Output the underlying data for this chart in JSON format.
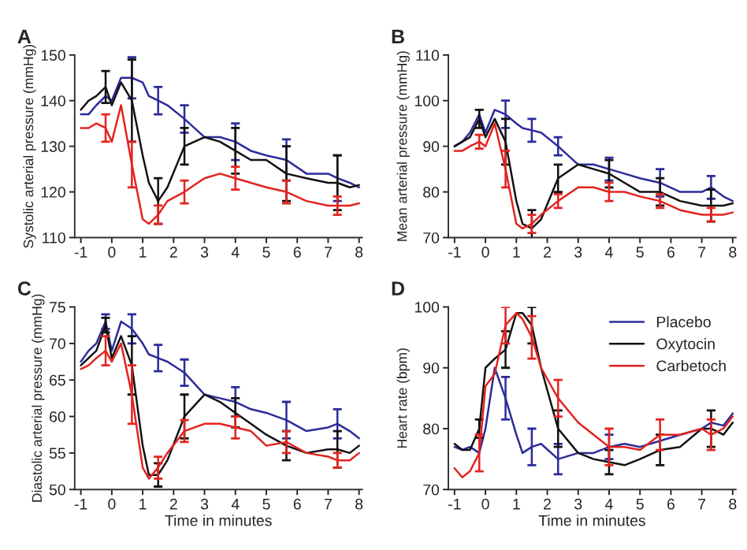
{
  "chart_data": [
    {
      "type": "line",
      "title": "A",
      "ylabel": "Systolic arterial pressure (mmHg)",
      "x": [
        -1,
        -0.75,
        -0.5,
        -0.2,
        0,
        0.3,
        0.65,
        1,
        1.2,
        1.5,
        1.8,
        2.35,
        3,
        3.5,
        4,
        4.5,
        5,
        5.65,
        6.3,
        7,
        7.3,
        7.7,
        8
      ],
      "xlim": [
        -1.2,
        8.1
      ],
      "xticks": [
        -1,
        0,
        1,
        2,
        3,
        4,
        5,
        6,
        7,
        8
      ],
      "ylim": [
        110,
        150
      ],
      "yticks": [
        110,
        120,
        130,
        140,
        150
      ],
      "legend": false,
      "series": [
        {
          "color": "#2b2b9a",
          "values": [
            137,
            137,
            139,
            141,
            140,
            145,
            145,
            144,
            141,
            140,
            139,
            136,
            132,
            132,
            131,
            129,
            128,
            127,
            124,
            124,
            123,
            122,
            121
          ],
          "errors": [
            null,
            null,
            null,
            null,
            null,
            null,
            4.5,
            null,
            null,
            3,
            null,
            3,
            null,
            null,
            4,
            null,
            null,
            4.5,
            null,
            null,
            5,
            null,
            null
          ]
        },
        {
          "color": "#111111",
          "values": [
            138,
            140,
            141,
            143,
            139,
            144,
            140,
            128,
            122,
            118,
            121,
            130,
            132,
            131,
            129,
            127,
            127,
            124,
            123,
            122,
            122,
            121,
            121.5
          ],
          "errors": [
            null,
            null,
            null,
            3.5,
            null,
            null,
            9,
            null,
            null,
            5,
            null,
            4,
            null,
            null,
            5,
            null,
            null,
            6,
            null,
            null,
            6,
            null,
            null
          ]
        },
        {
          "color": "#e3231f",
          "values": [
            134,
            134,
            135,
            134,
            131,
            139,
            126,
            114,
            113,
            115,
            118,
            120,
            123,
            124,
            123,
            122,
            121,
            120,
            118,
            117,
            117,
            117,
            117.5
          ],
          "errors": [
            null,
            null,
            null,
            3,
            null,
            null,
            5,
            null,
            null,
            2,
            null,
            2.5,
            null,
            null,
            2.5,
            null,
            null,
            2.5,
            null,
            null,
            2,
            null,
            null
          ]
        }
      ]
    },
    {
      "type": "line",
      "title": "B",
      "ylabel": "Mean arterial pressure (mmHg)",
      "x": [
        -1,
        -0.75,
        -0.5,
        -0.2,
        0,
        0.3,
        0.65,
        1,
        1.2,
        1.5,
        1.8,
        2.35,
        3,
        3.5,
        4,
        4.5,
        5,
        5.65,
        6.3,
        7,
        7.3,
        7.7,
        8
      ],
      "xlim": [
        -1.2,
        8.1
      ],
      "xticks": [
        -1,
        0,
        1,
        2,
        3,
        4,
        5,
        6,
        7,
        8
      ],
      "ylim": [
        70,
        110
      ],
      "yticks": [
        70,
        80,
        90,
        100,
        110
      ],
      "legend": false,
      "series": [
        {
          "color": "#2b2b9a",
          "values": [
            90,
            91,
            93,
            97,
            93,
            98,
            97,
            95,
            94,
            93.5,
            93,
            90,
            86,
            86,
            85,
            84,
            83,
            82,
            80,
            80,
            81,
            79,
            78
          ],
          "errors": [
            null,
            null,
            null,
            null,
            null,
            null,
            3,
            null,
            null,
            2.5,
            null,
            2,
            null,
            null,
            2.5,
            null,
            null,
            3,
            null,
            null,
            2.5,
            null,
            null
          ]
        },
        {
          "color": "#111111",
          "values": [
            90,
            91,
            92,
            96,
            92,
            96,
            91,
            78,
            73,
            72,
            74,
            83,
            86,
            85,
            84,
            82,
            80,
            80,
            78,
            77,
            77,
            77,
            77.5
          ],
          "errors": [
            null,
            null,
            null,
            2,
            null,
            null,
            5,
            null,
            null,
            4,
            null,
            3,
            null,
            null,
            3,
            null,
            null,
            3,
            null,
            null,
            3.5,
            null,
            null
          ]
        },
        {
          "color": "#e3231f",
          "values": [
            89,
            89,
            90,
            91,
            90,
            95,
            85,
            73,
            72,
            73,
            75,
            78,
            81,
            81,
            80,
            80,
            79,
            78,
            76,
            75,
            75,
            75,
            75.5
          ],
          "errors": [
            null,
            null,
            null,
            1.5,
            null,
            null,
            4,
            null,
            null,
            2,
            null,
            1.5,
            null,
            null,
            2,
            null,
            null,
            1.5,
            null,
            null,
            1.5,
            null,
            null
          ]
        }
      ]
    },
    {
      "type": "line",
      "title": "C",
      "ylabel": "Diastolic arterial pressure (mmHg)",
      "xlabel": "Time in minutes",
      "x": [
        -1,
        -0.75,
        -0.5,
        -0.2,
        0,
        0.3,
        0.65,
        1,
        1.2,
        1.5,
        1.8,
        2.35,
        3,
        3.5,
        4,
        4.5,
        5,
        5.65,
        6.3,
        7,
        7.3,
        7.7,
        8
      ],
      "xlim": [
        -1.2,
        8.1
      ],
      "xticks": [
        -1,
        0,
        1,
        2,
        3,
        4,
        5,
        6,
        7,
        8
      ],
      "ylim": [
        50,
        75
      ],
      "yticks": [
        50,
        55,
        60,
        65,
        70,
        75
      ],
      "legend": false,
      "series": [
        {
          "color": "#2b2b9a",
          "values": [
            67.5,
            69,
            70,
            73,
            69,
            73,
            72,
            70,
            68.5,
            68,
            67.5,
            66,
            63,
            62.5,
            62,
            61,
            60.5,
            59.5,
            58,
            58.5,
            59,
            58,
            57
          ],
          "errors": [
            null,
            null,
            null,
            1,
            null,
            null,
            2,
            null,
            null,
            1.8,
            null,
            1.8,
            null,
            null,
            2,
            null,
            null,
            2.5,
            null,
            null,
            2,
            null,
            null
          ]
        },
        {
          "color": "#111111",
          "values": [
            67,
            68,
            69,
            72.5,
            68,
            71,
            67,
            56,
            52,
            52,
            54,
            60,
            63,
            62,
            60.5,
            59,
            57.5,
            56,
            55,
            55.5,
            55.5,
            55,
            56
          ],
          "errors": [
            null,
            null,
            null,
            1,
            null,
            null,
            4,
            null,
            null,
            1.6,
            null,
            3,
            null,
            null,
            2,
            null,
            null,
            2,
            null,
            null,
            2.5,
            null,
            null
          ]
        },
        {
          "color": "#e3231f",
          "values": [
            66.5,
            67,
            68,
            69,
            67.5,
            70,
            63,
            53,
            51.5,
            53,
            55,
            58,
            59,
            59,
            58.5,
            58,
            56,
            56.5,
            55,
            54.5,
            54,
            54,
            55
          ],
          "errors": [
            null,
            null,
            null,
            2,
            null,
            null,
            4,
            null,
            null,
            1.5,
            null,
            1.5,
            null,
            null,
            1.5,
            null,
            null,
            1.5,
            null,
            null,
            1,
            null,
            null
          ]
        }
      ]
    },
    {
      "type": "line",
      "title": "D",
      "ylabel": "Heart rate (bpm)",
      "xlabel": "Time in minutes",
      "x": [
        -1,
        -0.75,
        -0.5,
        -0.2,
        0,
        0.3,
        0.65,
        1,
        1.2,
        1.5,
        1.8,
        2.35,
        3,
        3.5,
        4,
        4.5,
        5,
        5.65,
        6.3,
        7,
        7.3,
        7.7,
        8
      ],
      "xlim": [
        -1.2,
        8.1
      ],
      "xticks": [
        -1,
        0,
        1,
        2,
        3,
        4,
        5,
        6,
        7,
        8
      ],
      "ylim": [
        70,
        100
      ],
      "yticks": [
        70,
        80,
        90,
        100
      ],
      "legend": "top right",
      "series": [
        {
          "name": "Placebo",
          "color": "#2b2b9a",
          "values": [
            77,
            76.5,
            77,
            76,
            80,
            90,
            85,
            79,
            76,
            77,
            77.5,
            75,
            76,
            76,
            77,
            77.5,
            77,
            78,
            79,
            80,
            81,
            80.5,
            82.5
          ],
          "errors": [
            null,
            null,
            null,
            null,
            null,
            null,
            3.5,
            null,
            null,
            3,
            null,
            2.5,
            null,
            null,
            2,
            null,
            null,
            null,
            null,
            null,
            null,
            null,
            null
          ]
        },
        {
          "name": "Oxytocin",
          "color": "#111111",
          "values": [
            77.5,
            76.5,
            76.5,
            80,
            90,
            91.5,
            93,
            99,
            99,
            97,
            90,
            80,
            76,
            75,
            74.5,
            74,
            75,
            76.5,
            77,
            80,
            80,
            79,
            81
          ],
          "errors": [
            null,
            null,
            null,
            1.5,
            null,
            null,
            3,
            null,
            null,
            3,
            null,
            3,
            null,
            null,
            2,
            null,
            null,
            2.5,
            null,
            null,
            3,
            null,
            null
          ]
        },
        {
          "name": "Carbetoch",
          "color": "#e3231f",
          "values": [
            73.5,
            72,
            73,
            76,
            87,
            89,
            97,
            99,
            98,
            95,
            90,
            85,
            81,
            79,
            77,
            77,
            76.5,
            79,
            79,
            80,
            79,
            80,
            82
          ],
          "errors": [
            null,
            null,
            null,
            3,
            null,
            null,
            3,
            null,
            null,
            3.5,
            null,
            3,
            null,
            null,
            3,
            null,
            null,
            2.5,
            null,
            null,
            2.5,
            null,
            null
          ]
        }
      ]
    }
  ]
}
